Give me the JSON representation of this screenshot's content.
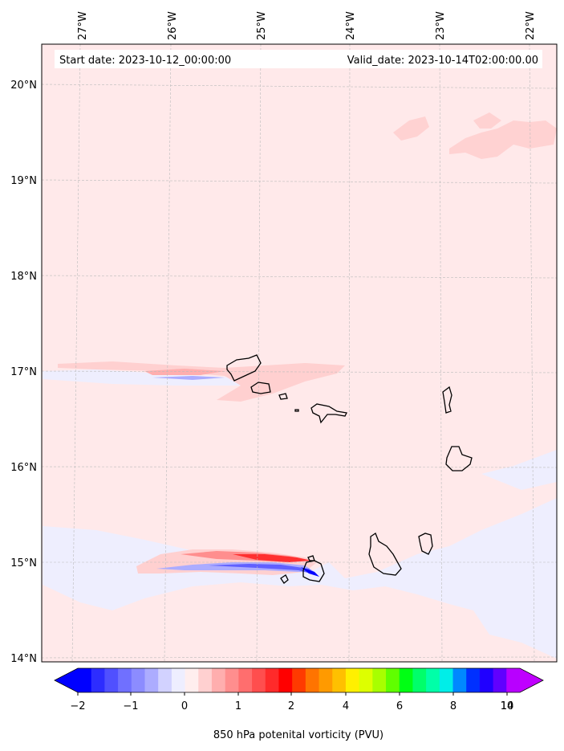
{
  "map": {
    "start_date": "Start date: 2023-10-12_00:00:00",
    "valid_date": "Valid_date: 2023-10-14T02:00:00.00",
    "lon_labels": [
      "27°W",
      "26°W",
      "25°W",
      "24°W",
      "23°W",
      "22°W"
    ],
    "lat_labels": [
      "20°N",
      "19°N",
      "18°N",
      "17°N",
      "16°N",
      "15°N",
      "14°N"
    ],
    "background_color": "#ffe9ea",
    "negative_color": "#eeeefe"
  },
  "colorbar": {
    "label": "850 hPa potenital vorticity (PVU)",
    "tick_labels": [
      "−2",
      "−1",
      "0",
      "1",
      "2",
      "4",
      "6",
      "8",
      "10",
      "14"
    ],
    "colors": [
      "#0000ff",
      "#2d2dff",
      "#5050ff",
      "#7070ff",
      "#8c8cff",
      "#acacff",
      "#d2d2ff",
      "#eeeeff",
      "#ffeeee",
      "#ffd0d0",
      "#ffaeae",
      "#ff8e8e",
      "#ff6e6e",
      "#ff4e4e",
      "#ff2a2a",
      "#ff0000",
      "#ff3a00",
      "#ff7400",
      "#ff9a00",
      "#ffc000",
      "#fff000",
      "#ddff00",
      "#a8ff00",
      "#60ff00",
      "#00ff14",
      "#00ff6a",
      "#00ffa8",
      "#00eee8",
      "#0088ff",
      "#0030ff",
      "#2000ff",
      "#6000ff",
      "#b800ff"
    ],
    "extend_low_color": "#0000ff",
    "extend_high_color": "#c000ff"
  }
}
